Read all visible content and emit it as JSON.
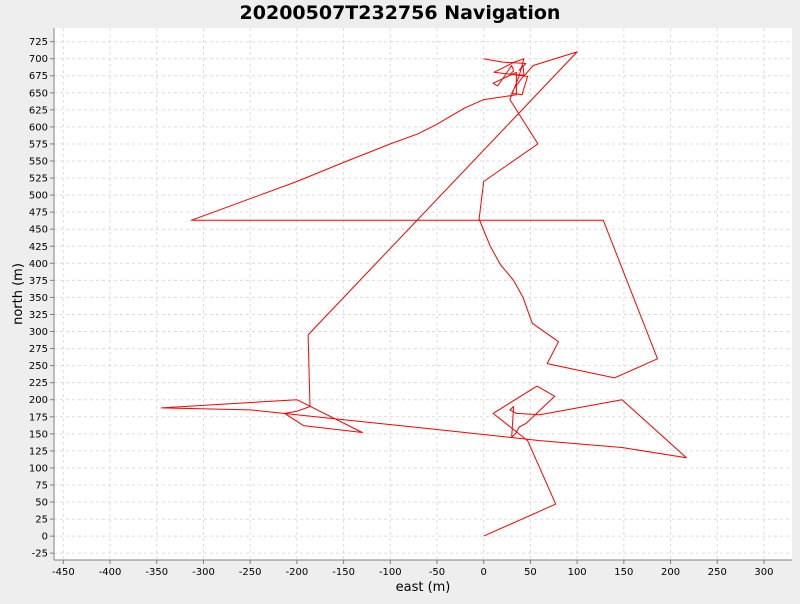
{
  "chart_data": {
    "type": "line",
    "title": "20200507T232756 Navigation",
    "xlabel": "east (m)",
    "ylabel": "north (m)",
    "xlim": [
      -460,
      330
    ],
    "ylim": [
      -35,
      745
    ],
    "xticks": [
      -450,
      -400,
      -350,
      -300,
      -250,
      -200,
      -150,
      -100,
      -50,
      0,
      50,
      100,
      150,
      200,
      250,
      300
    ],
    "yticks": [
      -25,
      0,
      25,
      50,
      75,
      100,
      125,
      150,
      175,
      200,
      225,
      250,
      275,
      300,
      325,
      350,
      375,
      400,
      425,
      450,
      475,
      500,
      525,
      550,
      575,
      600,
      625,
      650,
      675,
      700,
      725
    ],
    "grid": true,
    "colors": {
      "series": "#ff0000",
      "plot_background": "#ffffff",
      "page_background": "#eeeeee",
      "grid": "#dcdcdc"
    },
    "series": [
      {
        "x": [
          0,
          77,
          47,
          10,
          57,
          76,
          45,
          38,
          36,
          34,
          30,
          32,
          28,
          35,
          60,
          148,
          217,
          148,
          60,
          -55,
          -250,
          -345,
          -200,
          -130,
          -193,
          -213,
          -200,
          -186,
          -188,
          100,
          53,
          40,
          33,
          30,
          38,
          41,
          47,
          11,
          33,
          43,
          40,
          38,
          28,
          58,
          0,
          -5,
          7,
          18,
          32,
          42,
          52,
          80,
          68,
          140,
          186,
          128,
          -313,
          -200,
          -150,
          -100,
          -70,
          -50,
          -20,
          0,
          35,
          35,
          10,
          15,
          30,
          32,
          28,
          43,
          42,
          38,
          45,
          20,
          0
        ],
        "y": [
          0,
          47,
          140,
          180,
          220,
          205,
          165,
          160,
          155,
          150,
          145,
          190,
          185,
          180,
          178,
          200,
          115,
          130,
          140,
          157,
          185,
          188,
          200,
          152,
          162,
          180,
          183,
          190,
          295,
          710,
          690,
          670,
          657,
          649,
          648,
          647,
          674,
          680,
          695,
          700,
          685,
          675,
          640,
          575,
          520,
          465,
          425,
          398,
          375,
          350,
          312,
          285,
          253,
          232,
          260,
          463,
          463,
          520,
          548,
          575,
          590,
          604,
          628,
          640,
          647,
          680,
          664,
          660,
          690,
          682,
          677,
          676,
          690,
          683,
          693,
          695,
          700
        ]
      }
    ]
  }
}
